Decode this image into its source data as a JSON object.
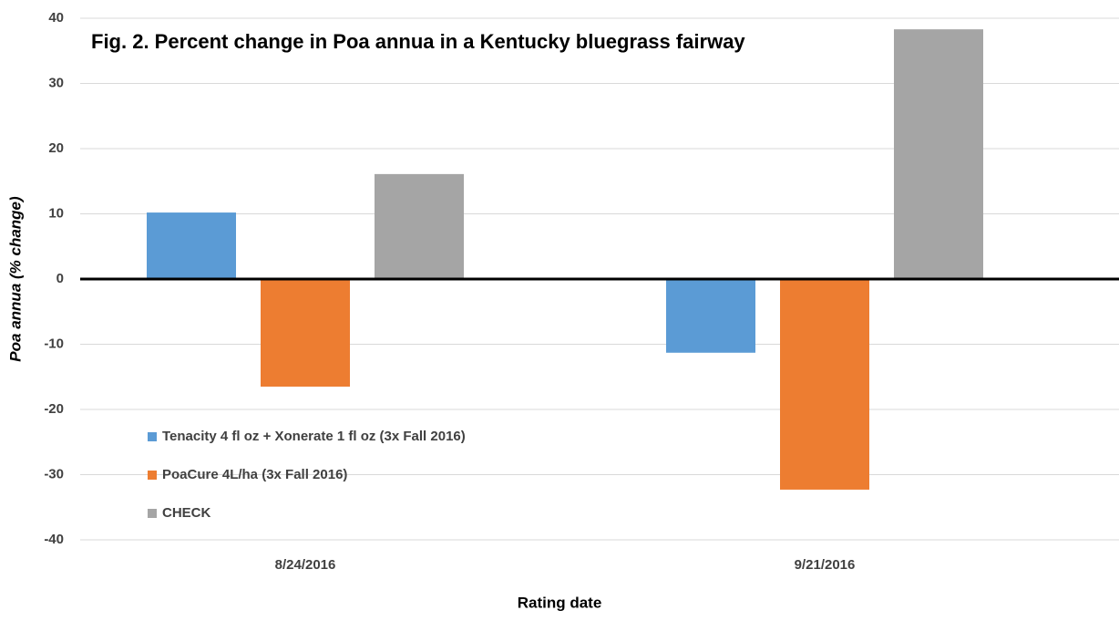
{
  "chart_data": {
    "type": "bar",
    "title": "Fig. 2.  Percent change in Poa annua in a Kentucky bluegrass fairway",
    "x_label": "Rating date",
    "y_label": "Poa annua (% change)",
    "categories": [
      "8/24/2016",
      "9/21/2016"
    ],
    "series": [
      {
        "name": "Tenacity 4 fl oz + Xonerate 1 fl oz (3x Fall 2016)",
        "color": "#5b9bd5",
        "values": [
          10.2,
          -11.3
        ]
      },
      {
        "name": "PoaCure 4L/ha (3x Fall 2016)",
        "color": "#ed7d31",
        "values": [
          -16.5,
          -32.3
        ]
      },
      {
        "name": "CHECK",
        "color": "#a5a5a5",
        "values": [
          16.1,
          38.3
        ]
      }
    ],
    "ylim": [
      -40,
      40
    ],
    "yticks": [
      -40,
      -30,
      -20,
      -10,
      0,
      10,
      20,
      30,
      40
    ],
    "grid": true,
    "legend": "lower left"
  }
}
